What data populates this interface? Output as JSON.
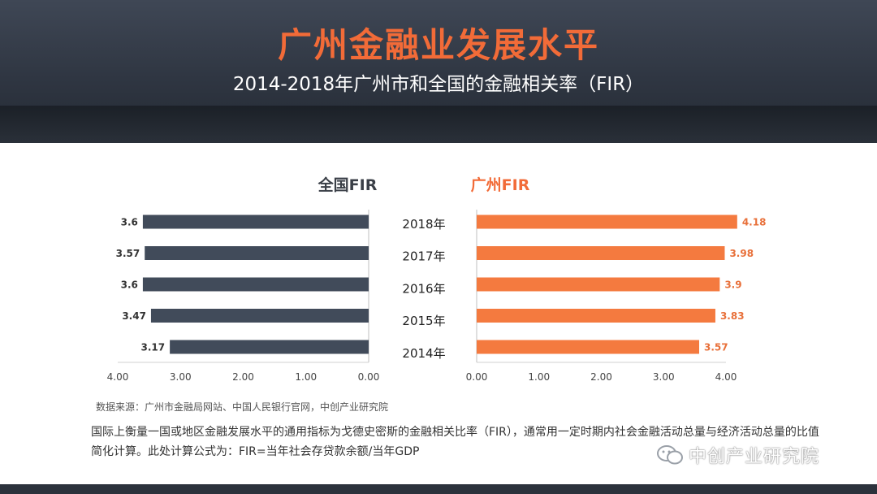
{
  "header": {
    "title": "广州金融业发展水平",
    "subtitle": "2014-2018年广州市和全国的金融相关率（FIR）"
  },
  "colors": {
    "national_bar": "#414b5a",
    "guangzhou_bar": "#f47a3f",
    "title": "#f26b38",
    "header_bg": "#353c48"
  },
  "chart_data": {
    "type": "bar",
    "orientation": "horizontal",
    "categories": [
      "2018年",
      "2017年",
      "2016年",
      "2015年",
      "2014年"
    ],
    "panels": [
      {
        "title": "全国FIR",
        "color": "#414b5a",
        "reversed_axis": true,
        "xlim": [
          0,
          4
        ],
        "ticks": [
          "4.00",
          "3.00",
          "2.00",
          "1.00",
          "0.00"
        ],
        "tick_values": [
          4,
          3,
          2,
          1,
          0
        ],
        "values": [
          3.6,
          3.57,
          3.6,
          3.47,
          3.17
        ],
        "labels": [
          "3.6",
          "3.57",
          "3.6",
          "3.47",
          "3.17"
        ]
      },
      {
        "title": "广州FIR",
        "color": "#f47a3f",
        "reversed_axis": false,
        "xlim": [
          0,
          4
        ],
        "ticks": [
          "0.00",
          "1.00",
          "2.00",
          "3.00",
          "4.00"
        ],
        "tick_values": [
          0,
          1,
          2,
          3,
          4
        ],
        "values": [
          4.18,
          3.98,
          3.9,
          3.83,
          3.57
        ],
        "labels": [
          "4.18",
          "3.98",
          "3.9",
          "3.83",
          "3.57"
        ]
      }
    ]
  },
  "source": "数据来源：广州市金融局网站、中国人民银行官网，中创产业研究院",
  "note": "国际上衡量一国或地区金融发展水平的通用指标为戈德史密斯的金融相关比率（FIR），通常用一定时期内社会金融活动总量与经济活动总量的比值简化计算。此处计算公式为：FIR=当年社会存贷款余额/当年GDP",
  "watermark": {
    "text": "中创产业研究院",
    "icon": "wechat-icon"
  }
}
